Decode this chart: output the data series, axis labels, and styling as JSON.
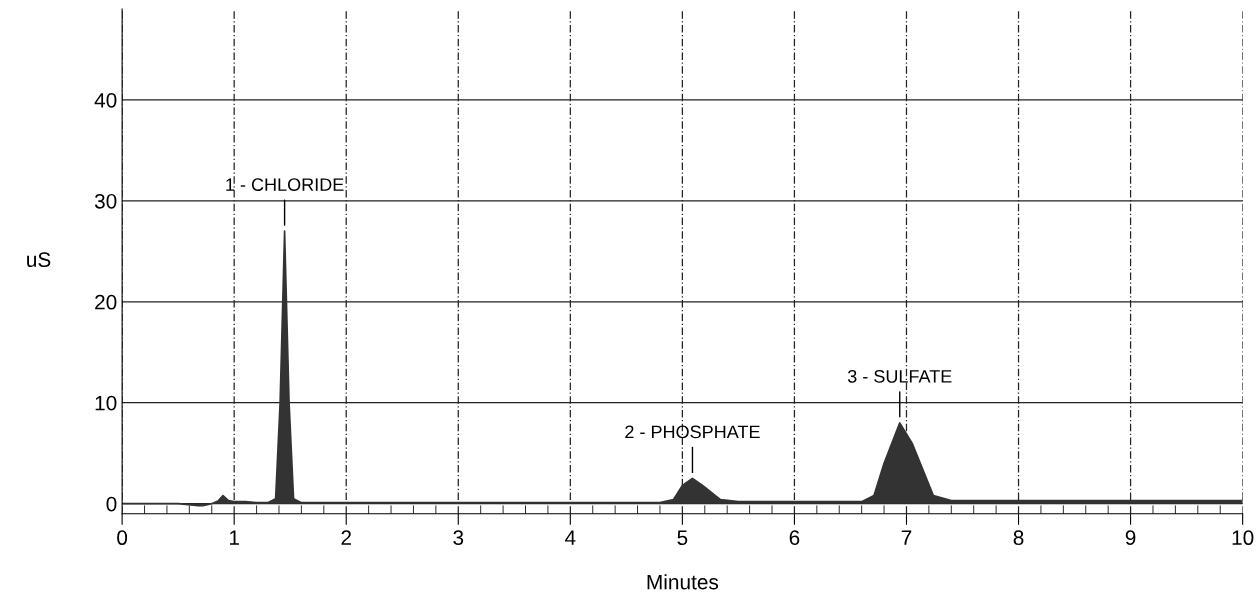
{
  "chart_data": {
    "type": "area",
    "xlabel": "Minutes",
    "ylabel": "uS",
    "x": [
      0,
      0.5,
      0.68,
      0.72,
      0.8,
      0.86,
      0.9,
      0.95,
      1.0,
      1.1,
      1.2,
      1.3,
      1.37,
      1.41,
      1.45,
      1.49,
      1.53,
      1.6,
      2,
      3,
      4,
      4.8,
      4.92,
      5.0,
      5.09,
      5.18,
      5.34,
      5.5,
      6,
      6.6,
      6.71,
      6.8,
      6.94,
      7.05,
      7.24,
      7.4,
      8,
      9,
      10
    ],
    "series": [
      {
        "color": "#333333",
        "values": [
          0,
          0,
          -0.2,
          -0.2,
          0,
          0.3,
          0.8,
          0.3,
          0.2,
          0.2,
          0.1,
          0.1,
          0.5,
          10,
          27,
          10,
          0.5,
          0.1,
          0.1,
          0.1,
          0.1,
          0.1,
          0.4,
          1.8,
          2.5,
          1.8,
          0.4,
          0.2,
          0.2,
          0.2,
          0.8,
          4,
          8,
          6,
          0.8,
          0.3,
          0.3,
          0.3,
          0.3
        ]
      }
    ],
    "xlim": [
      0,
      10
    ],
    "ylim": [
      -1,
      49
    ],
    "xticks": [
      0,
      {
        "value": 0.2,
        "label": null
      },
      {
        "value": 0.4,
        "label": null
      },
      {
        "value": 0.6,
        "label": null
      },
      {
        "value": 0.8,
        "label": null
      },
      1,
      {
        "value": 1.2,
        "label": null
      },
      {
        "value": 1.4,
        "label": null
      },
      {
        "value": 1.6,
        "label": null
      },
      {
        "value": 1.8,
        "label": null
      },
      2,
      {
        "value": 2.2,
        "label": null
      },
      {
        "value": 2.4,
        "label": null
      },
      {
        "value": 2.6,
        "label": null
      },
      {
        "value": 2.8,
        "label": null
      },
      3,
      {
        "value": 3.2,
        "label": null
      },
      {
        "value": 3.4,
        "label": null
      },
      {
        "value": 3.6,
        "label": null
      },
      {
        "value": 3.8,
        "label": null
      },
      4,
      {
        "value": 4.2,
        "label": null
      },
      {
        "value": 4.4,
        "label": null
      },
      {
        "value": 4.6,
        "label": null
      },
      {
        "value": 4.8,
        "label": null
      },
      5,
      {
        "value": 5.2,
        "label": null
      },
      {
        "value": 5.4,
        "label": null
      },
      {
        "value": 5.6,
        "label": null
      },
      {
        "value": 5.8,
        "label": null
      },
      6,
      {
        "value": 6.2,
        "label": null
      },
      {
        "value": 6.4,
        "label": null
      },
      {
        "value": 6.6,
        "label": null
      },
      {
        "value": 6.8,
        "label": null
      },
      7,
      {
        "value": 7.2,
        "label": null
      },
      {
        "value": 7.4,
        "label": null
      },
      {
        "value": 7.6,
        "label": null
      },
      {
        "value": 7.8,
        "label": null
      },
      8,
      {
        "value": 8.2,
        "label": null
      },
      {
        "value": 8.4,
        "label": null
      },
      {
        "value": 8.6,
        "label": null
      },
      {
        "value": 8.8,
        "label": null
      },
      9,
      {
        "value": 9.2,
        "label": null
      },
      {
        "value": 9.4,
        "label": null
      },
      {
        "value": 9.6,
        "label": null
      },
      {
        "value": 9.8,
        "label": null
      },
      10
    ],
    "yticks": [
      0,
      10,
      20,
      30,
      40
    ],
    "grid": true,
    "annotations": [
      {
        "text": "1 - CHLORIDE",
        "x": 1.45,
        "y": 27
      },
      {
        "text": "2 - PHOSPHATE",
        "x": 5.09,
        "y": 2.5
      },
      {
        "text": "3 - SULFATE",
        "x": 6.94,
        "y": 8
      }
    ]
  }
}
